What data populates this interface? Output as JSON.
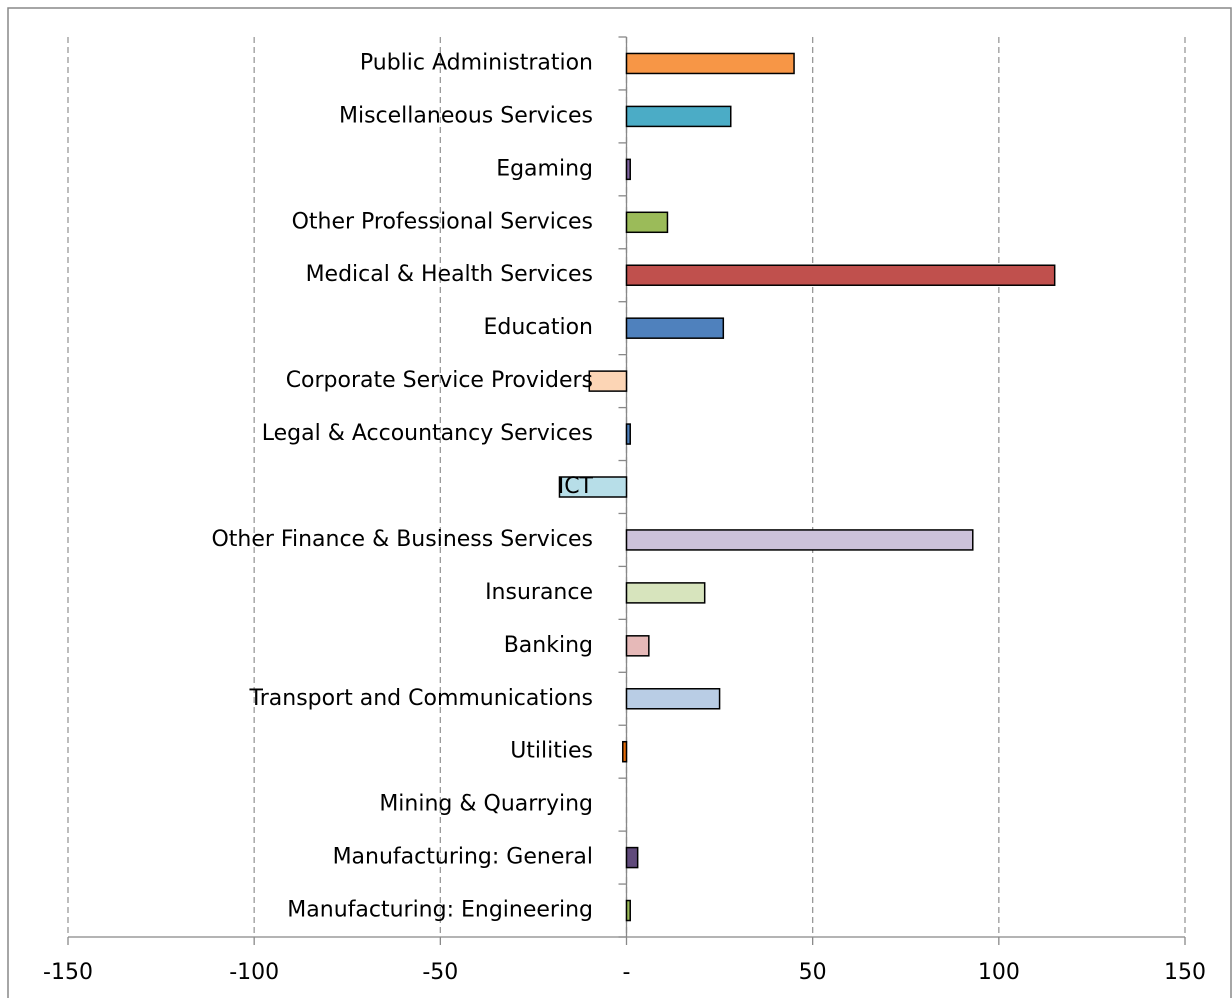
{
  "chart_data": {
    "type": "hbar",
    "categories": [
      "Public Administration",
      "Miscellaneous Services",
      "Egaming",
      "Other Professional Services",
      "Medical & Health Services",
      "Education",
      "Corporate Service Providers",
      "Legal & Accountancy Services",
      "ICT",
      "Other Finance & Business Services",
      "Insurance",
      "Banking",
      "Transport and Communications",
      "Utilities",
      "Mining & Quarrying",
      "Manufacturing: General",
      "Manufacturing: Engineering"
    ],
    "values": [
      45,
      28,
      1,
      11,
      115,
      26,
      -10,
      1,
      -18,
      93,
      21,
      6,
      25,
      -1,
      0,
      3,
      1
    ],
    "colors": [
      "#f79646",
      "#4bacc6",
      "#8064a2",
      "#9bbb59",
      "#c0504d",
      "#4f81bd",
      "#fcd5b5",
      "#4f81bd",
      "#b7dee8",
      "#ccc1da",
      "#d7e4bd",
      "#e6b9b8",
      "#b9cde5",
      "#e46c0a",
      "#9bbb59",
      "#604a7b",
      "#9bbb59"
    ],
    "xlim": [
      -150,
      150
    ],
    "xticks": [
      -150,
      -100,
      -50,
      {
        "value": 0,
        "label": "-"
      },
      50,
      100,
      150
    ],
    "grid": true
  }
}
